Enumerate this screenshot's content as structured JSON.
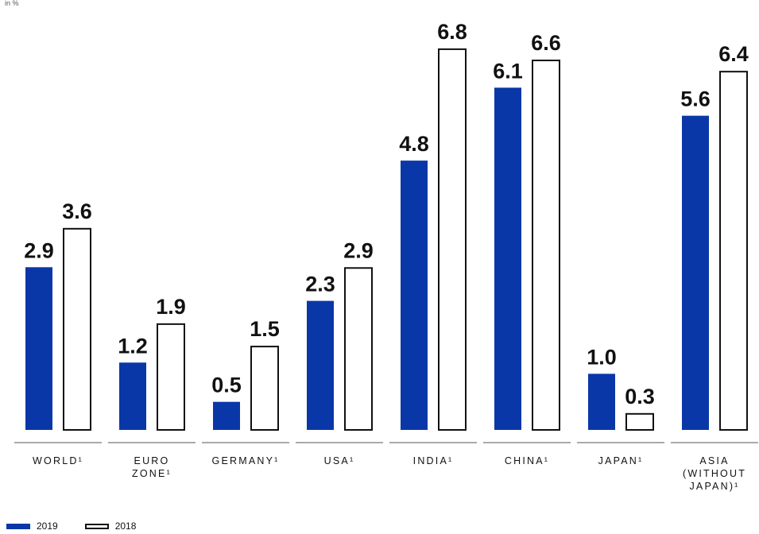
{
  "colors": {
    "series_2019": "#0a37a8",
    "series_2018": "#ffffff",
    "outline": "#111111"
  },
  "chart_data": {
    "type": "bar",
    "unit_label": "in %",
    "categories": [
      [
        "WORLD¹"
      ],
      [
        "EURO",
        "ZONE¹"
      ],
      [
        "GERMANY¹"
      ],
      [
        "USA¹"
      ],
      [
        "INDIA¹"
      ],
      [
        "CHINA¹"
      ],
      [
        "JAPAN¹"
      ],
      [
        "ASIA",
        "(WITHOUT",
        "JAPAN)¹"
      ]
    ],
    "series": [
      {
        "name": "2019",
        "values": [
          2.9,
          1.2,
          0.5,
          2.3,
          4.8,
          6.1,
          1.0,
          5.6
        ]
      },
      {
        "name": "2018",
        "values": [
          3.6,
          1.9,
          1.5,
          2.9,
          6.8,
          6.6,
          0.3,
          6.4
        ]
      }
    ],
    "ylim": [
      0,
      7
    ],
    "grid": false,
    "legend_position": "bottom-left"
  }
}
